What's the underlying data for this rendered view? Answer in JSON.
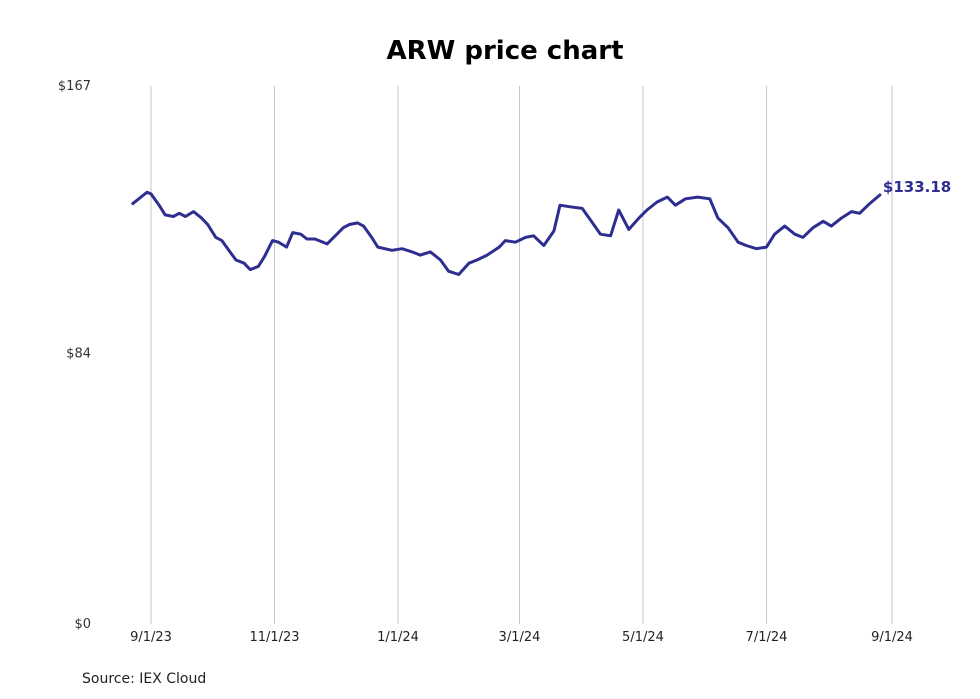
{
  "chart_data": {
    "type": "line",
    "title": "ARW price chart",
    "source": "Source: IEX Cloud",
    "ylim": [
      0,
      167
    ],
    "y_ticks": [
      {
        "value": 0,
        "label": "$0"
      },
      {
        "value": 84,
        "label": "$84"
      },
      {
        "value": 167,
        "label": "$167"
      }
    ],
    "x_ticks": [
      {
        "date": "2023-09-01",
        "label": "9/1/23"
      },
      {
        "date": "2023-11-01",
        "label": "11/1/23"
      },
      {
        "date": "2024-01-01",
        "label": "1/1/24"
      },
      {
        "date": "2024-03-01",
        "label": "3/1/24"
      },
      {
        "date": "2024-05-01",
        "label": "5/1/24"
      },
      {
        "date": "2024-07-01",
        "label": "7/1/24"
      },
      {
        "date": "2024-09-01",
        "label": "9/1/24"
      }
    ],
    "grid": "vertical",
    "line_color": "#2e2e91",
    "last_value_label": "$133.18",
    "series": [
      {
        "x": [
          "2023-08-23",
          "2023-08-25",
          "2023-08-28",
          "2023-08-30",
          "2023-09-01",
          "2023-09-05",
          "2023-09-08",
          "2023-09-12",
          "2023-09-15",
          "2023-09-18",
          "2023-09-22",
          "2023-09-26",
          "2023-09-29",
          "2023-10-03",
          "2023-10-06",
          "2023-10-10",
          "2023-10-13",
          "2023-10-17",
          "2023-10-20",
          "2023-10-24",
          "2023-10-27",
          "2023-10-31",
          "2023-11-03",
          "2023-11-07",
          "2023-11-10",
          "2023-11-14",
          "2023-11-17",
          "2023-11-21",
          "2023-11-27",
          "2023-12-01",
          "2023-12-05",
          "2023-12-08",
          "2023-12-12",
          "2023-12-15",
          "2023-12-19",
          "2023-12-22",
          "2023-12-29",
          "2024-01-03",
          "2024-01-08",
          "2024-01-12",
          "2024-01-17",
          "2024-01-22",
          "2024-01-26",
          "2024-01-31",
          "2024-02-05",
          "2024-02-09",
          "2024-02-14",
          "2024-02-20",
          "2024-02-23",
          "2024-02-28",
          "2024-03-04",
          "2024-03-08",
          "2024-03-13",
          "2024-03-18",
          "2024-03-21",
          "2024-03-26",
          "2024-04-01",
          "2024-04-05",
          "2024-04-10",
          "2024-04-15",
          "2024-04-19",
          "2024-04-24",
          "2024-04-29",
          "2024-05-03",
          "2024-05-08",
          "2024-05-13",
          "2024-05-17",
          "2024-05-22",
          "2024-05-28",
          "2024-06-03",
          "2024-06-07",
          "2024-06-12",
          "2024-06-17",
          "2024-06-21",
          "2024-06-26",
          "2024-07-01",
          "2024-07-05",
          "2024-07-10",
          "2024-07-15",
          "2024-07-19",
          "2024-07-24",
          "2024-07-29",
          "2024-08-02",
          "2024-08-07",
          "2024-08-12",
          "2024-08-16",
          "2024-08-21",
          "2024-08-26"
        ],
        "y": [
          130.5,
          131.5,
          133.0,
          134.0,
          133.5,
          130.0,
          127.0,
          126.5,
          127.5,
          126.5,
          128.0,
          126.0,
          124.0,
          120.0,
          119.0,
          115.5,
          113.0,
          112.0,
          110.0,
          111.0,
          114.0,
          119.0,
          118.5,
          117.0,
          121.5,
          121.0,
          119.5,
          119.5,
          118.0,
          120.5,
          123.0,
          124.0,
          124.5,
          123.5,
          120.0,
          117.0,
          116.0,
          116.5,
          115.5,
          114.5,
          115.5,
          113.0,
          109.5,
          108.5,
          112.0,
          113.0,
          114.5,
          117.0,
          119.0,
          118.5,
          120.0,
          120.5,
          117.5,
          122.0,
          130.0,
          129.5,
          129.0,
          125.5,
          121.0,
          120.5,
          128.5,
          122.5,
          126.0,
          128.5,
          131.0,
          132.5,
          130.0,
          132.0,
          132.5,
          132.0,
          126.0,
          123.0,
          118.5,
          117.5,
          116.5,
          117.0,
          121.0,
          123.5,
          121.0,
          120.0,
          123.0,
          125.0,
          123.5,
          126.0,
          128.0,
          127.5,
          130.5,
          133.18
        ]
      }
    ]
  }
}
